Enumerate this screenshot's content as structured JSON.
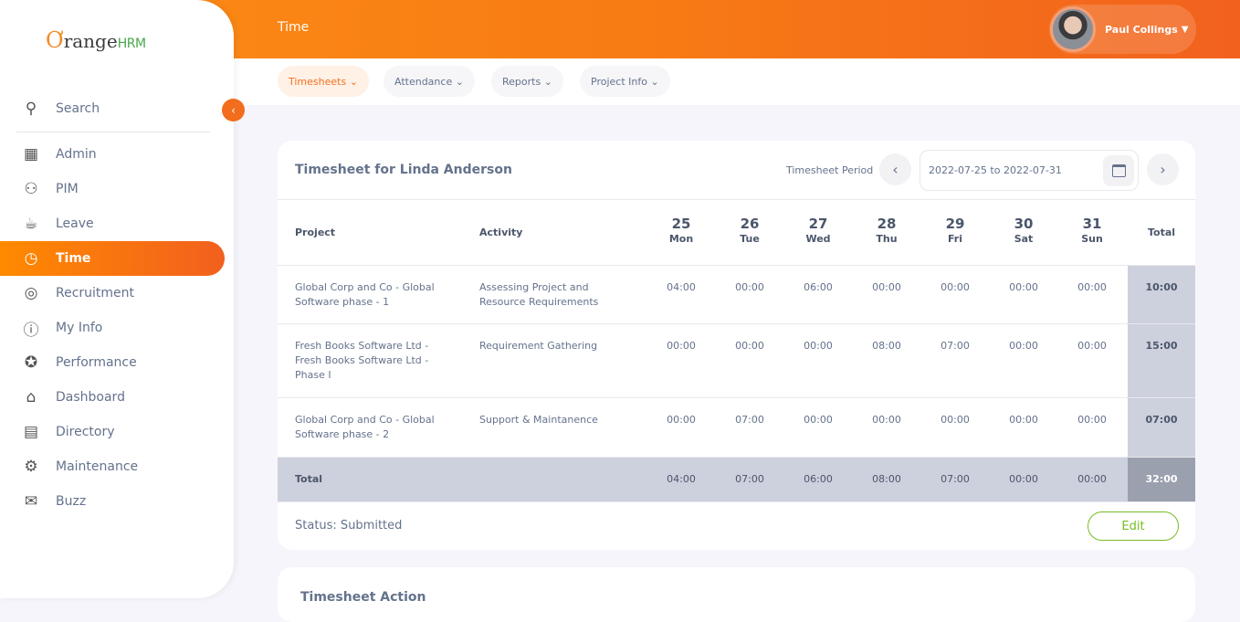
{
  "header": {
    "title": "Time",
    "user_name": "Paul Collings"
  },
  "logo": {
    "text": "OrangeHRM"
  },
  "sidebar": {
    "search": "Search",
    "items": [
      {
        "label": "Admin",
        "icon": "admin-icon"
      },
      {
        "label": "PIM",
        "icon": "pim-icon"
      },
      {
        "label": "Leave",
        "icon": "leave-icon"
      },
      {
        "label": "Time",
        "icon": "time-icon",
        "active": true
      },
      {
        "label": "Recruitment",
        "icon": "recruitment-icon"
      },
      {
        "label": "My Info",
        "icon": "myinfo-icon"
      },
      {
        "label": "Performance",
        "icon": "performance-icon"
      },
      {
        "label": "Dashboard",
        "icon": "dashboard-icon"
      },
      {
        "label": "Directory",
        "icon": "directory-icon"
      },
      {
        "label": "Maintenance",
        "icon": "maintenance-icon"
      },
      {
        "label": "Buzz",
        "icon": "buzz-icon"
      }
    ]
  },
  "subnav": {
    "tabs": [
      {
        "label": "Timesheets",
        "active": true
      },
      {
        "label": "Attendance"
      },
      {
        "label": "Reports"
      },
      {
        "label": "Project Info"
      }
    ]
  },
  "timesheet": {
    "title": "Timesheet for Linda Anderson",
    "period_label": "Timesheet Period",
    "period_value": "2022-07-25 to 2022-07-31",
    "columns": {
      "project": "Project",
      "activity": "Activity",
      "total": "Total"
    },
    "days": [
      {
        "num": "25",
        "name": "Mon"
      },
      {
        "num": "26",
        "name": "Tue"
      },
      {
        "num": "27",
        "name": "Wed"
      },
      {
        "num": "28",
        "name": "Thu"
      },
      {
        "num": "29",
        "name": "Fri"
      },
      {
        "num": "30",
        "name": "Sat"
      },
      {
        "num": "31",
        "name": "Sun"
      }
    ],
    "rows": [
      {
        "project": "Global Corp and Co - Global Software phase - 1",
        "activity": "Assessing Project and Resource Requirements",
        "hours": [
          "04:00",
          "00:00",
          "06:00",
          "00:00",
          "00:00",
          "00:00",
          "00:00"
        ],
        "total": "10:00"
      },
      {
        "project": "Fresh Books Software Ltd - Fresh Books Software Ltd - Phase I",
        "activity": "Requirement Gathering",
        "hours": [
          "00:00",
          "00:00",
          "00:00",
          "08:00",
          "07:00",
          "00:00",
          "00:00"
        ],
        "total": "15:00"
      },
      {
        "project": "Global Corp and Co - Global Software phase - 2",
        "activity": "Support & Maintanence",
        "hours": [
          "00:00",
          "07:00",
          "00:00",
          "00:00",
          "00:00",
          "00:00",
          "00:00"
        ],
        "total": "07:00"
      }
    ],
    "totals": {
      "label": "Total",
      "hours": [
        "04:00",
        "07:00",
        "06:00",
        "08:00",
        "07:00",
        "00:00",
        "00:00"
      ],
      "grand": "32:00"
    },
    "status": "Status: Submitted",
    "edit_label": "Edit"
  },
  "action_card": {
    "title": "Timesheet Action"
  },
  "colors": {
    "accent": "#f27020",
    "edit": "#76bc21",
    "total_bg": "#cdd0dd",
    "grand_total_bg": "#9aa0ae"
  }
}
